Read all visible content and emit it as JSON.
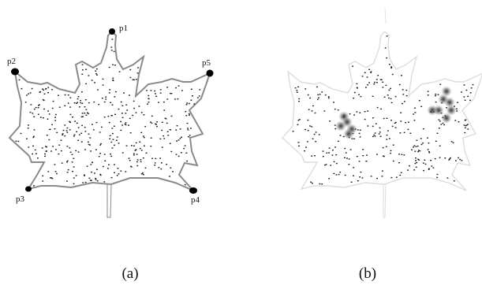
{
  "figure": {
    "panels": [
      {
        "id": "a",
        "caption": "(a)",
        "landmarks": [
          {
            "label": "p1"
          },
          {
            "label": "p2"
          },
          {
            "label": "p3"
          },
          {
            "label": "p4"
          },
          {
            "label": "p5"
          }
        ]
      },
      {
        "id": "b",
        "caption": "(b)"
      }
    ],
    "colors": {
      "leaf_outline_a": "#8a8a8a",
      "leaf_outline_b": "#d9d9d9",
      "dots": "#1a1a1a",
      "landmark": "#000000",
      "blob": "#555555"
    }
  }
}
